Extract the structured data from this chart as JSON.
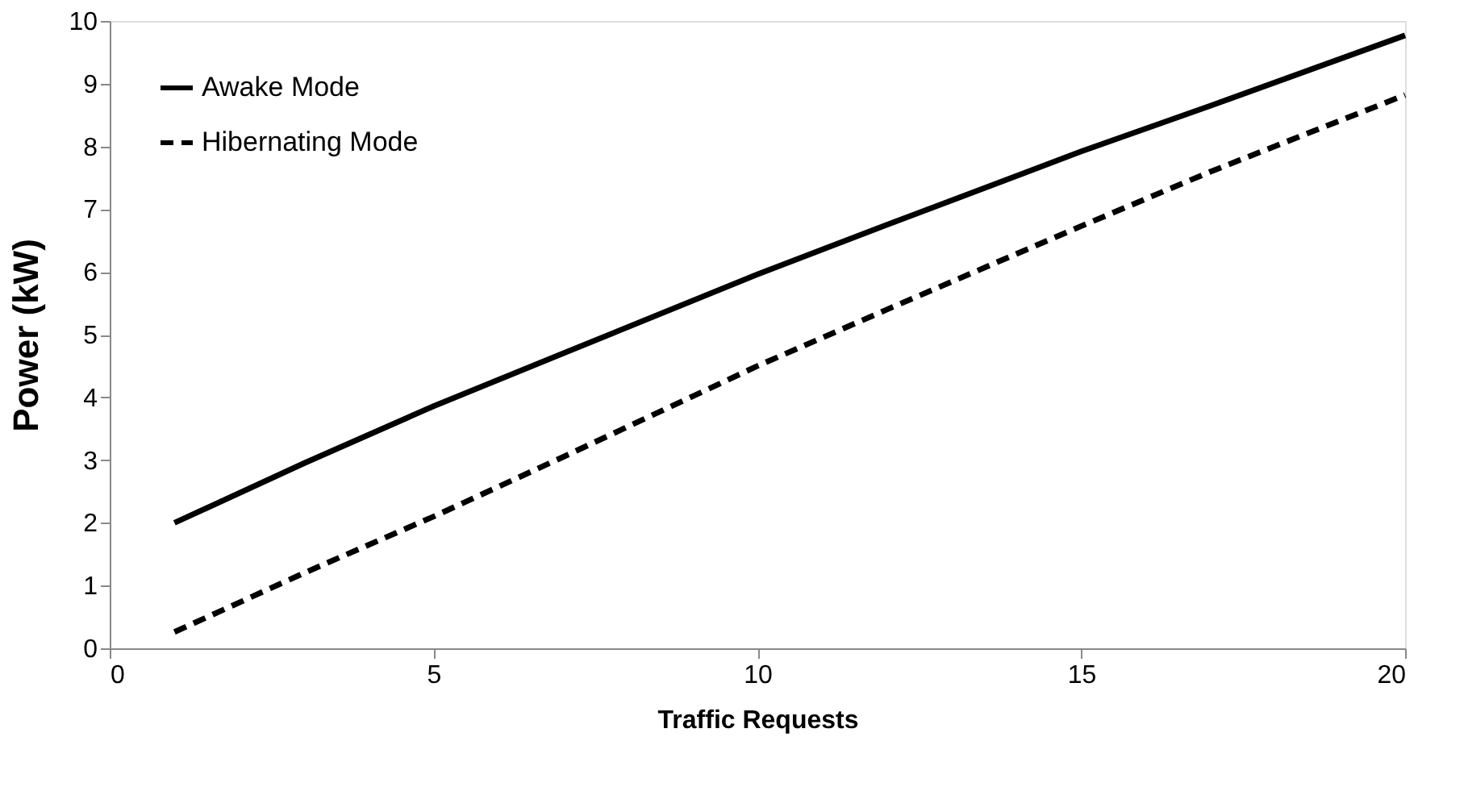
{
  "chart_data": {
    "type": "line",
    "xlabel": "Traffic Requests",
    "ylabel": "Power (kW)",
    "xlim": [
      0,
      20
    ],
    "ylim": [
      0,
      10
    ],
    "xticks": [
      0,
      5,
      10,
      15,
      20
    ],
    "yticks": [
      0,
      1,
      2,
      3,
      4,
      5,
      6,
      7,
      8,
      9,
      10
    ],
    "grid": false,
    "legend": "top left",
    "marker": "none",
    "series": [
      {
        "name": "Awake Mode",
        "color": "#000000",
        "line_style": "solid",
        "x": [
          1,
          3,
          5,
          7,
          10,
          12,
          15,
          17,
          20
        ],
        "values": [
          2.0,
          2.95,
          3.86,
          4.7,
          5.96,
          6.75,
          7.92,
          8.65,
          9.77
        ]
      },
      {
        "name": "Hibernating Mode",
        "color": "#000000",
        "line_style": "dashed",
        "x": [
          1,
          3,
          5,
          7,
          10,
          12,
          15,
          17,
          20
        ],
        "values": [
          0.26,
          1.2,
          2.1,
          3.05,
          4.5,
          5.4,
          6.73,
          7.6,
          8.82
        ]
      }
    ]
  }
}
